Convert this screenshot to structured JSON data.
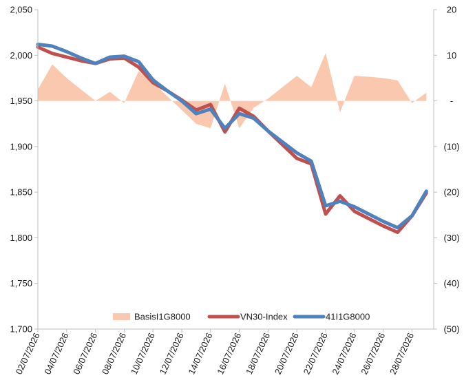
{
  "chart_data": {
    "type": "line",
    "x": [
      "02/07/2026",
      "03/07/2026",
      "04/07/2026",
      "05/07/2026",
      "06/07/2026",
      "07/07/2026",
      "08/07/2026",
      "09/07/2026",
      "10/07/2026",
      "11/07/2026",
      "12/07/2026",
      "13/07/2026",
      "14/07/2026",
      "15/07/2026",
      "16/07/2026",
      "17/07/2026",
      "18/07/2026",
      "19/07/2026",
      "20/07/2026",
      "21/07/2026",
      "22/07/2026",
      "23/07/2026",
      "24/07/2026",
      "25/07/2026",
      "26/07/2026",
      "27/07/2026",
      "28/07/2026",
      "29/07/2026"
    ],
    "x_tick_labels": [
      "02/07/2026",
      "04/07/2026",
      "06/07/2026",
      "08/07/2026",
      "10/07/2026",
      "12/07/2026",
      "14/07/2026",
      "16/07/2026",
      "18/07/2026",
      "20/07/2026",
      "22/07/2026",
      "24/07/2026",
      "26/07/2026",
      "28/07/2026"
    ],
    "y_left": {
      "min": 1700,
      "max": 2050,
      "ticks": [
        "1,700",
        "1,750",
        "1,800",
        "1,850",
        "1,900",
        "1,950",
        "2,000",
        "2,050"
      ]
    },
    "y_right": {
      "min": -50,
      "max": 20,
      "ticks": [
        "(50)",
        "(40)",
        "(30)",
        "(20)",
        "(10)",
        "-",
        "10",
        "20"
      ]
    },
    "series": [
      {
        "name": "BasisI1G8000",
        "kind": "area",
        "axis": "right",
        "color": "#f9c8ae",
        "x_idx": [
          0,
          1,
          2,
          3,
          4,
          5,
          6,
          7,
          8,
          9,
          10,
          11,
          12,
          13,
          14,
          15,
          16,
          17,
          18,
          19,
          20,
          21,
          22,
          23,
          24,
          25,
          26,
          27
        ],
        "values": [
          2.5,
          8,
          5,
          2.5,
          0,
          2,
          -0.5,
          6.5,
          4,
          1,
          -2,
          -5,
          -6,
          3.8,
          -6,
          -1.5,
          0.5,
          3,
          5.5,
          3,
          10.5,
          -2.5,
          5.5,
          5.3,
          5,
          4.5,
          -0.5,
          1.8
        ]
      },
      {
        "name": "VN30-Index",
        "kind": "line",
        "axis": "left",
        "color": "#c0504d",
        "x_idx": [
          0,
          1,
          2,
          3,
          4,
          5,
          6,
          7,
          8,
          9,
          10,
          11,
          12,
          13,
          14,
          15,
          16,
          17,
          18,
          19,
          20,
          21,
          22,
          23,
          24,
          25,
          26,
          27
        ],
        "values": [
          2009,
          2002,
          1998,
          1994,
          1991,
          1996,
          1997,
          1987,
          1970,
          1961,
          1951,
          1940,
          1946,
          1916,
          1942,
          1933,
          1917,
          1902,
          1887,
          1881,
          1826,
          1846,
          1829,
          1821,
          1813,
          1806,
          1824,
          1849
        ]
      },
      {
        "name": "41I1G8000",
        "kind": "line",
        "axis": "left",
        "color": "#4f81bd",
        "x_idx": [
          0,
          1,
          2,
          3,
          4,
          5,
          6,
          7,
          8,
          9,
          10,
          11,
          12,
          13,
          14,
          15,
          16,
          17,
          18,
          19,
          20,
          21,
          22,
          23,
          24,
          25,
          26,
          27
        ],
        "values": [
          2012,
          2010,
          2004,
          1997,
          1991,
          1998,
          1999,
          1993,
          1973,
          1961,
          1950,
          1936,
          1941,
          1920,
          1936,
          1931,
          1917,
          1905,
          1893,
          1884,
          1835,
          1840,
          1834,
          1826,
          1818,
          1811,
          1824,
          1851
        ]
      }
    ],
    "legend": {
      "placement": "bottom-center"
    },
    "grid": false
  }
}
